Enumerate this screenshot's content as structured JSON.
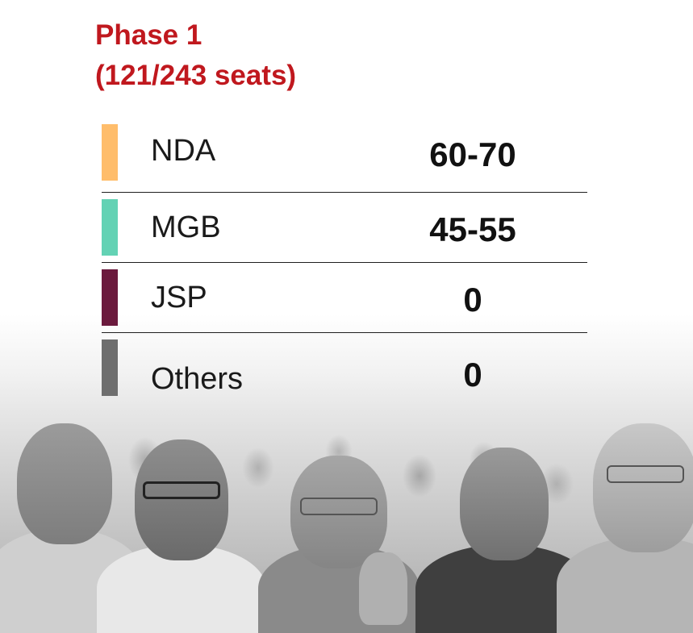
{
  "title": {
    "line1": "Phase 1",
    "line2": "(121/243 seats)",
    "color": "#c0181e"
  },
  "rows": [
    {
      "party": "NDA",
      "seats": "60-70",
      "color": "#ffbd6b"
    },
    {
      "party": "MGB",
      "seats": "45-55",
      "color": "#63d2b4"
    },
    {
      "party": "JSP",
      "seats": "0",
      "color": "#6b1a3d"
    },
    {
      "party": "Others",
      "seats": "0",
      "color": "#6e6e6e"
    }
  ]
}
